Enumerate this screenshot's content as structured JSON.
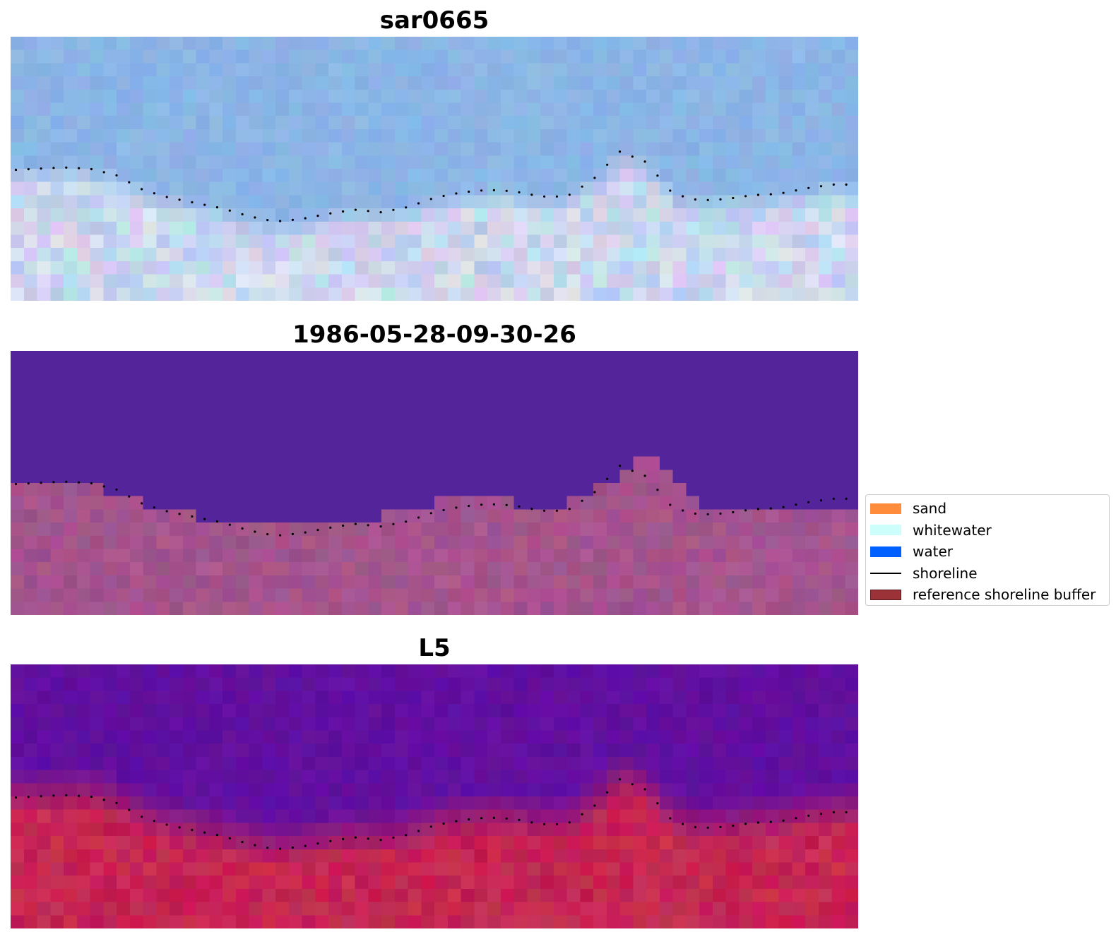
{
  "chart_data": {
    "type": "heatmap",
    "panels": [
      {
        "title": "sar0665",
        "style": "rgb-image"
      },
      {
        "title": "1986-05-28-09-30-26",
        "style": "classification"
      },
      {
        "title": "L5",
        "style": "index-image"
      }
    ],
    "grid": {
      "cols": 64,
      "rows": 20
    },
    "shoreline_profile": [
      [
        0,
        10.1
      ],
      [
        2,
        10.0
      ],
      [
        4,
        9.9
      ],
      [
        6,
        10.0
      ],
      [
        8,
        10.5
      ],
      [
        10,
        11.6
      ],
      [
        12,
        12.2
      ],
      [
        14,
        12.6
      ],
      [
        16,
        13.0
      ],
      [
        18,
        13.6
      ],
      [
        20,
        14.0
      ],
      [
        22,
        13.8
      ],
      [
        24,
        13.4
      ],
      [
        26,
        13.1
      ],
      [
        28,
        13.3
      ],
      [
        30,
        12.9
      ],
      [
        32,
        12.2
      ],
      [
        34,
        11.8
      ],
      [
        36,
        11.6
      ],
      [
        38,
        11.7
      ],
      [
        40,
        12.1
      ],
      [
        42,
        12.1
      ],
      [
        44,
        10.8
      ],
      [
        46,
        8.7
      ],
      [
        48,
        9.5
      ],
      [
        50,
        11.9
      ],
      [
        52,
        12.4
      ],
      [
        54,
        12.3
      ],
      [
        56,
        12.0
      ],
      [
        58,
        11.9
      ],
      [
        60,
        11.5
      ],
      [
        62,
        11.2
      ],
      [
        64,
        11.2
      ]
    ],
    "buffer_profile": [
      [
        0,
        10
      ],
      [
        7,
        10
      ],
      [
        7,
        11
      ],
      [
        10,
        11
      ],
      [
        10,
        12
      ],
      [
        14,
        12
      ],
      [
        14,
        13
      ],
      [
        28,
        13
      ],
      [
        28,
        12
      ],
      [
        32,
        12
      ],
      [
        32,
        11
      ],
      [
        38,
        11
      ],
      [
        38,
        12
      ],
      [
        42,
        12
      ],
      [
        42,
        11
      ],
      [
        44,
        11
      ],
      [
        44,
        10
      ],
      [
        46,
        10
      ],
      [
        46,
        9
      ],
      [
        47,
        9
      ],
      [
        47,
        8
      ],
      [
        49,
        8
      ],
      [
        49,
        9
      ],
      [
        50,
        9
      ],
      [
        50,
        10
      ],
      [
        51,
        10
      ],
      [
        51,
        11
      ],
      [
        52,
        11
      ],
      [
        52,
        12
      ],
      [
        64,
        12
      ]
    ],
    "legend": {
      "position": "center-right",
      "items": [
        {
          "label": "sand",
          "color": "#ff8c3a",
          "kind": "patch"
        },
        {
          "label": "whitewater",
          "color": "#ccfffb",
          "kind": "patch"
        },
        {
          "label": "water",
          "color": "#005fff",
          "kind": "patch"
        },
        {
          "label": "shoreline",
          "color": "#000000",
          "kind": "line"
        },
        {
          "label": "reference shoreline buffer",
          "color": "#9a3238",
          "kind": "patch"
        }
      ]
    },
    "colors": {
      "classification_water_overlay": "#54249a",
      "classification_buffer": "#9c548e",
      "index_water": "#5e0c99",
      "index_land": "#c0144a"
    }
  }
}
